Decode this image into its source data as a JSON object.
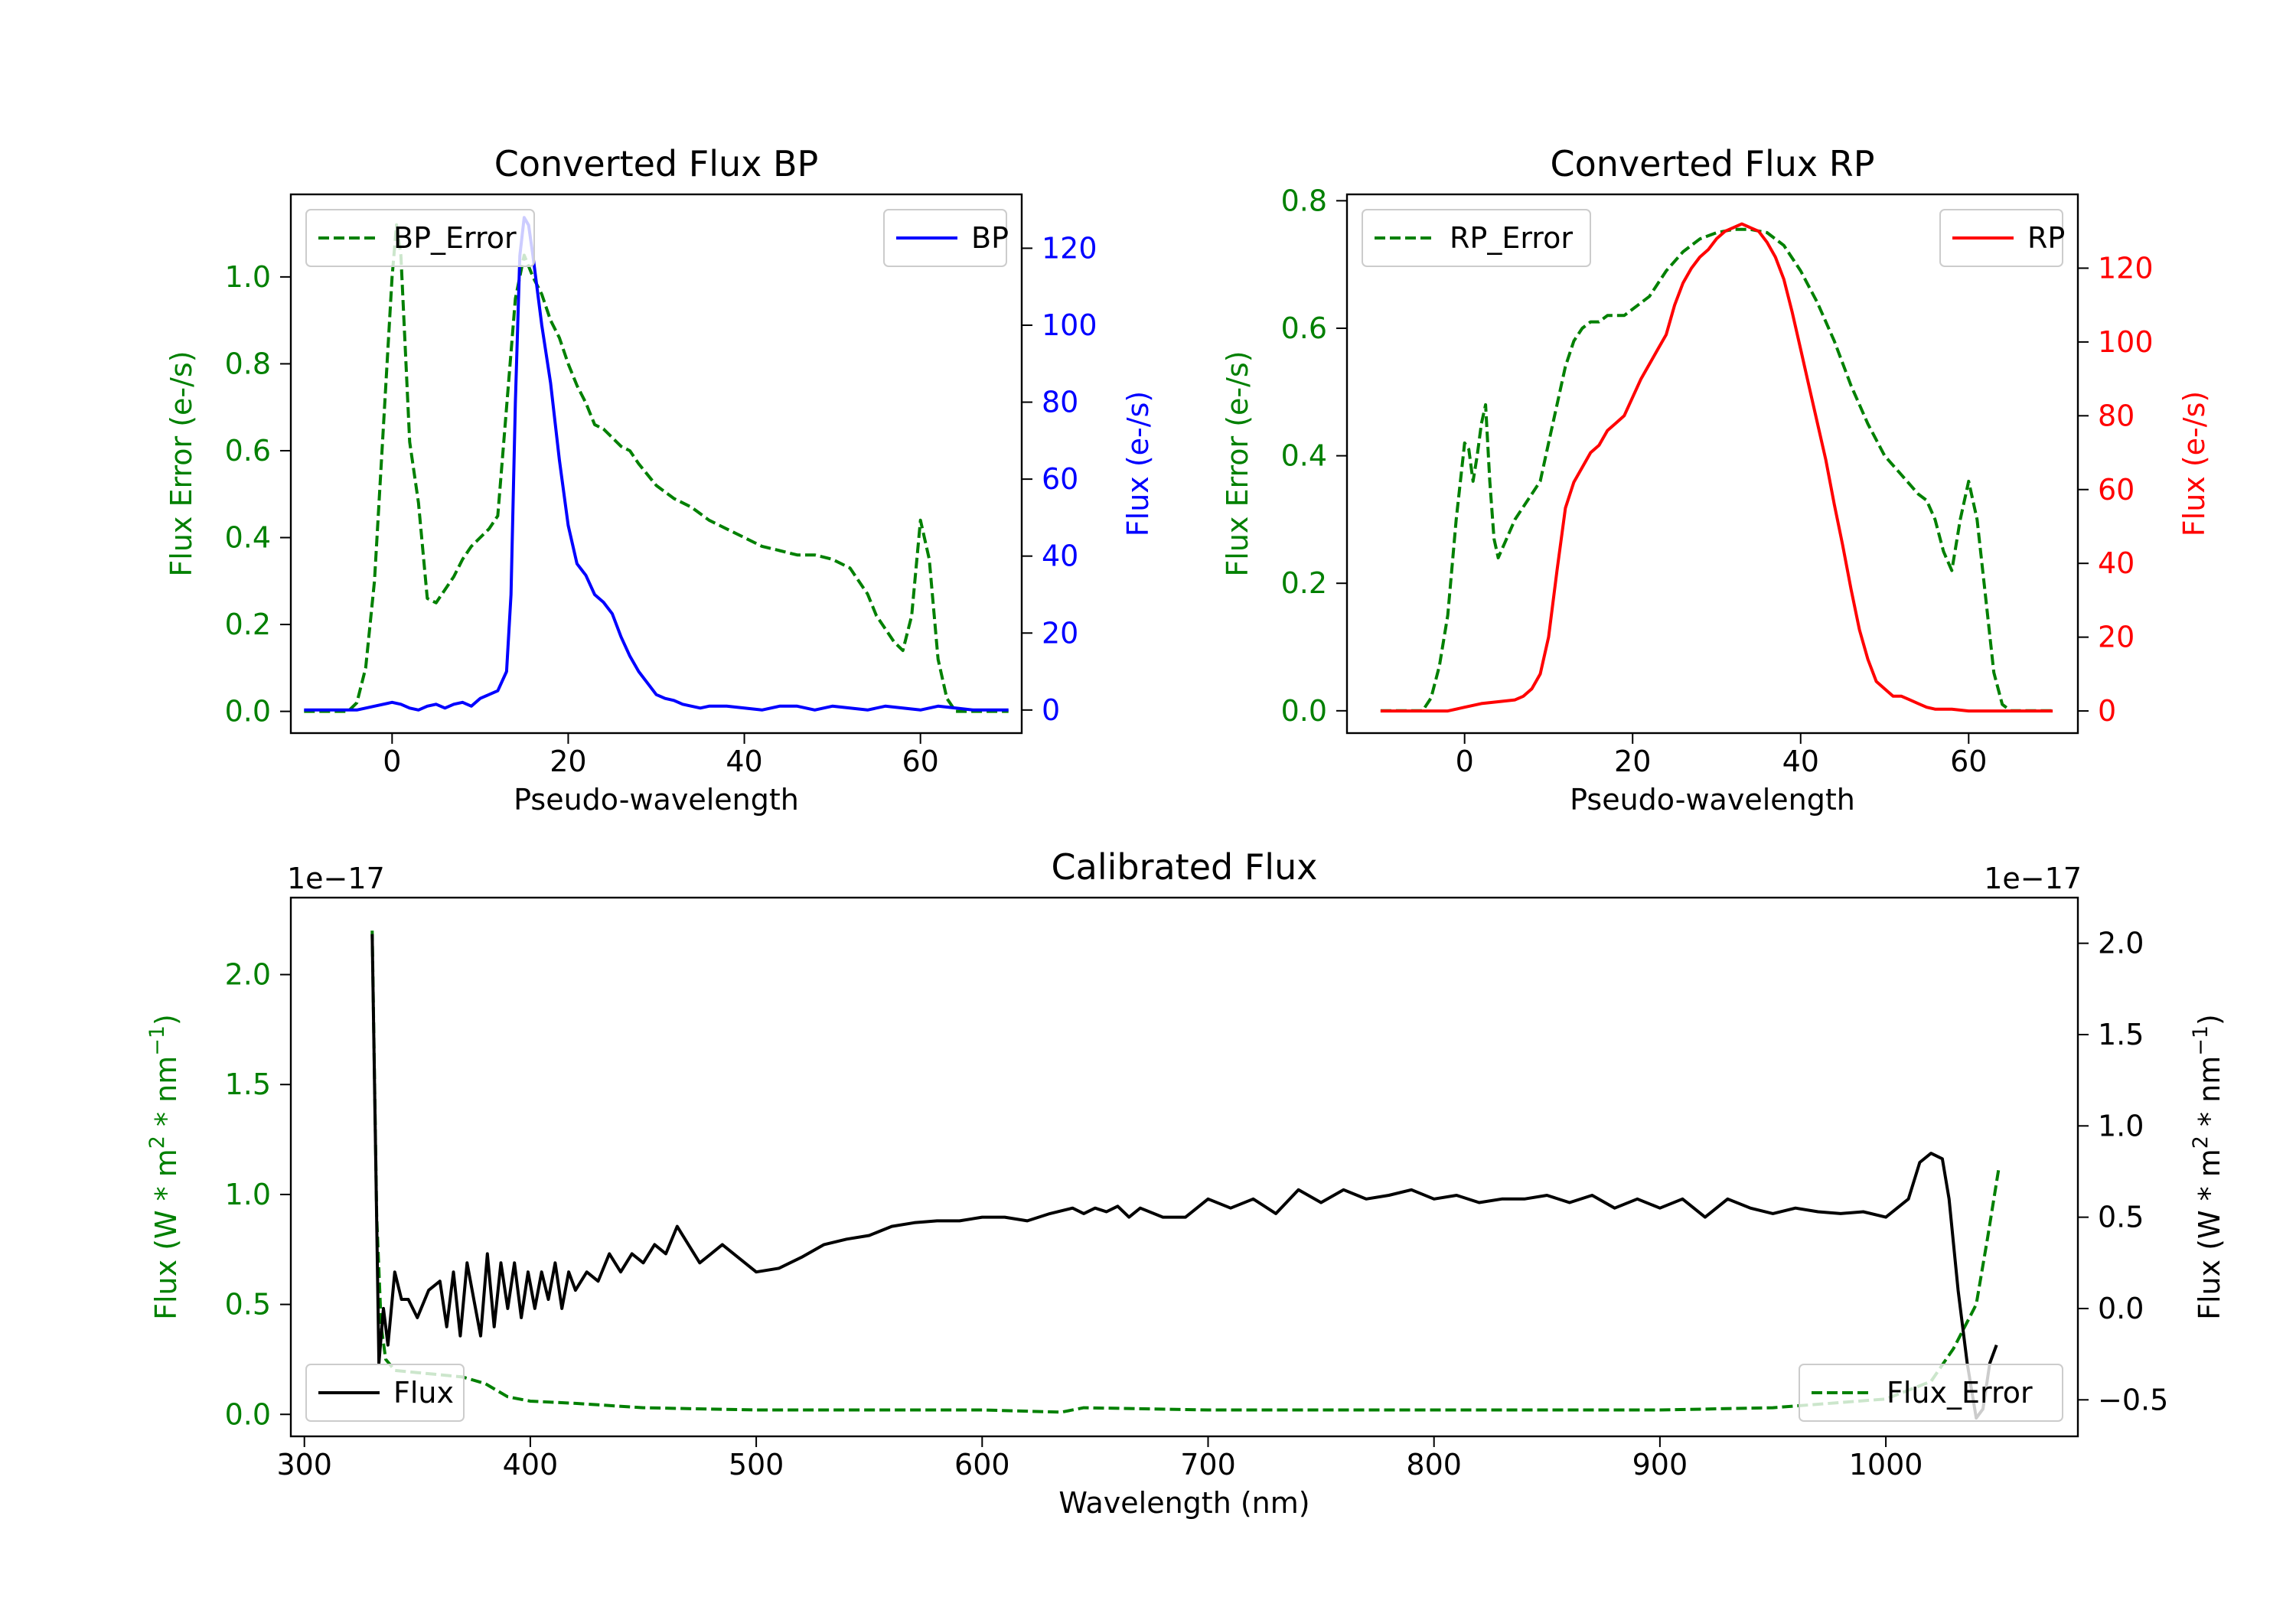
{
  "chart_data": [
    {
      "id": "bp",
      "type": "line",
      "title": "Converted Flux BP",
      "xlabel": "Pseudo-wavelength",
      "ylabel_left": "Flux Error (e-/s)",
      "ylabel_right": "Flux (e-/s)",
      "xlim": [
        -11.5,
        71.5
      ],
      "ylim_left": [
        -0.05,
        1.19
      ],
      "ylim_right": [
        -6,
        134
      ],
      "xticks": [
        0,
        20,
        40,
        60
      ],
      "xtick_labels": [
        "0",
        "20",
        "40",
        "60"
      ],
      "yticks_left": [
        0.0,
        0.2,
        0.4,
        0.6,
        0.8,
        1.0
      ],
      "ytick_labels_left": [
        "0.0",
        "0.2",
        "0.4",
        "0.6",
        "0.8",
        "1.0"
      ],
      "yticks_right": [
        0,
        20,
        40,
        60,
        80,
        100,
        120
      ],
      "ytick_labels_right": [
        "0",
        "20",
        "40",
        "60",
        "80",
        "100",
        "120"
      ],
      "left_axis_color": "#008000",
      "right_axis_color": "#0000ff",
      "series": [
        {
          "name": "BP_Error",
          "axis": "left",
          "color": "#008000",
          "style": "dashed",
          "x": [
            -10,
            -5,
            -4,
            -3,
            -2,
            -1,
            0,
            0.5,
            1,
            2,
            3,
            4,
            5,
            6,
            7,
            8,
            9,
            10,
            11,
            12,
            13,
            14,
            15,
            16,
            17,
            18,
            19,
            20,
            21,
            22,
            23,
            24,
            25,
            26,
            27,
            28,
            30,
            32,
            34,
            36,
            38,
            40,
            42,
            44,
            46,
            48,
            50,
            52,
            54,
            55,
            56,
            57,
            58,
            59,
            60,
            61,
            62,
            63,
            64,
            66,
            70
          ],
          "values": [
            0.0,
            0.0,
            0.02,
            0.1,
            0.3,
            0.65,
            1.0,
            1.12,
            1.05,
            0.62,
            0.48,
            0.26,
            0.25,
            0.28,
            0.31,
            0.35,
            0.38,
            0.4,
            0.42,
            0.45,
            0.7,
            0.95,
            1.05,
            1.0,
            0.96,
            0.9,
            0.86,
            0.8,
            0.75,
            0.71,
            0.66,
            0.65,
            0.63,
            0.61,
            0.6,
            0.57,
            0.52,
            0.49,
            0.47,
            0.44,
            0.42,
            0.4,
            0.38,
            0.37,
            0.36,
            0.36,
            0.35,
            0.33,
            0.27,
            0.22,
            0.19,
            0.16,
            0.14,
            0.22,
            0.44,
            0.35,
            0.12,
            0.03,
            0.0,
            0.0,
            0.0
          ]
        },
        {
          "name": "BP",
          "axis": "right",
          "color": "#0000ff",
          "style": "solid",
          "x": [
            -10,
            -6,
            -4,
            -2,
            0,
            1,
            2,
            3,
            4,
            5,
            6,
            7,
            8,
            9,
            10,
            11,
            12,
            13,
            13.5,
            14,
            14.5,
            15,
            15.5,
            16,
            17,
            18,
            19,
            20,
            21,
            22,
            23,
            24,
            25,
            26,
            27,
            28,
            29,
            30,
            31,
            32,
            33,
            34,
            35,
            36,
            38,
            40,
            42,
            44,
            46,
            48,
            50,
            52,
            54,
            56,
            58,
            60,
            62,
            64,
            66,
            70
          ],
          "values": [
            0,
            0,
            0,
            1,
            2,
            1.5,
            0.5,
            0,
            1,
            1.5,
            0.5,
            1.5,
            2,
            1,
            3,
            4,
            5,
            10,
            30,
            80,
            118,
            128,
            126,
            118,
            100,
            85,
            65,
            48,
            38,
            35,
            30,
            28,
            25,
            19,
            14,
            10,
            7,
            4,
            3,
            2.5,
            1.5,
            1,
            0.5,
            1,
            1,
            0.5,
            0,
            1,
            1,
            0,
            1,
            0.5,
            0,
            1,
            0.5,
            0,
            1,
            0.5,
            0,
            0
          ]
        }
      ],
      "legends": [
        {
          "position": "upper-left",
          "entries": [
            "BP_Error"
          ]
        },
        {
          "position": "upper-right",
          "entries": [
            "BP"
          ]
        }
      ]
    },
    {
      "id": "rp",
      "type": "line",
      "title": "Converted Flux RP",
      "xlabel": "Pseudo-wavelength",
      "ylabel_left": "Flux Error (e-/s)",
      "ylabel_right": "Flux (e-/s)",
      "xlim": [
        -14,
        73
      ],
      "ylim_left": [
        -0.035,
        0.81
      ],
      "ylim_right": [
        -6,
        140
      ],
      "xticks": [
        0,
        20,
        40,
        60
      ],
      "xtick_labels": [
        "0",
        "20",
        "40",
        "60"
      ],
      "yticks_left": [
        0.0,
        0.2,
        0.4,
        0.6,
        0.8
      ],
      "ytick_labels_left": [
        "0.0",
        "0.2",
        "0.4",
        "0.6",
        "0.8"
      ],
      "yticks_right": [
        0,
        20,
        40,
        60,
        80,
        100,
        120
      ],
      "ytick_labels_right": [
        "0",
        "20",
        "40",
        "60",
        "80",
        "100",
        "120"
      ],
      "left_axis_color": "#008000",
      "right_axis_color": "#ff0000",
      "series": [
        {
          "name": "RP_Error",
          "axis": "left",
          "color": "#008000",
          "style": "dashed",
          "x": [
            -10,
            -5,
            -4,
            -3,
            -2,
            -1,
            0,
            0.5,
            1,
            1.5,
            2,
            2.5,
            3,
            3.5,
            4,
            5,
            6,
            7,
            8,
            9,
            10,
            11,
            12,
            13,
            14,
            15,
            16,
            17,
            18,
            19,
            20,
            22,
            24,
            26,
            28,
            30,
            32,
            34,
            36,
            38,
            40,
            42,
            44,
            46,
            48,
            50,
            52,
            54,
            55,
            56,
            57,
            58,
            59,
            60,
            61,
            62,
            63,
            64,
            65,
            70
          ],
          "values": [
            0.0,
            0.0,
            0.02,
            0.07,
            0.15,
            0.3,
            0.42,
            0.41,
            0.36,
            0.4,
            0.45,
            0.48,
            0.36,
            0.27,
            0.24,
            0.27,
            0.3,
            0.32,
            0.34,
            0.36,
            0.42,
            0.48,
            0.54,
            0.58,
            0.6,
            0.61,
            0.61,
            0.62,
            0.62,
            0.62,
            0.63,
            0.65,
            0.69,
            0.72,
            0.74,
            0.75,
            0.755,
            0.755,
            0.75,
            0.73,
            0.69,
            0.64,
            0.58,
            0.51,
            0.45,
            0.4,
            0.37,
            0.34,
            0.33,
            0.3,
            0.25,
            0.22,
            0.3,
            0.36,
            0.3,
            0.18,
            0.06,
            0.01,
            0.0,
            0.0
          ]
        },
        {
          "name": "RP",
          "axis": "right",
          "color": "#ff0000",
          "style": "solid",
          "x": [
            -10,
            -2,
            0,
            2,
            4,
            6,
            7,
            8,
            9,
            10,
            11,
            12,
            13,
            14,
            15,
            16,
            17,
            18,
            19,
            20,
            21,
            22,
            23,
            24,
            25,
            26,
            27,
            28,
            29,
            30,
            31,
            32,
            33,
            34,
            35,
            36,
            37,
            38,
            39,
            40,
            41,
            42,
            43,
            44,
            45,
            46,
            47,
            48,
            49,
            50,
            51,
            52,
            53,
            54,
            55,
            56,
            58,
            60,
            62,
            70
          ],
          "values": [
            0,
            0,
            1,
            2,
            2.5,
            3,
            4,
            6,
            10,
            20,
            38,
            55,
            62,
            66,
            70,
            72,
            76,
            78,
            80,
            85,
            90,
            94,
            98,
            102,
            110,
            116,
            120,
            123,
            125,
            128,
            130,
            131,
            132,
            131,
            130,
            127,
            123,
            117,
            108,
            98,
            88,
            78,
            68,
            56,
            45,
            33,
            22,
            14,
            8,
            6,
            4,
            4,
            3,
            2,
            1,
            0.5,
            0.5,
            0,
            0,
            0
          ]
        }
      ],
      "legends": [
        {
          "position": "upper-left",
          "entries": [
            "RP_Error"
          ]
        },
        {
          "position": "upper-right",
          "entries": [
            "RP"
          ]
        }
      ]
    },
    {
      "id": "cal",
      "type": "line",
      "title": "Calibrated Flux",
      "xlabel": "Wavelength (nm)",
      "ylabel_left": "Flux (W * m^2 * nm^-1)",
      "ylabel_right": "Flux (W * m^2 * nm^-1)",
      "ylabel_main": "Flux (W * m",
      "ylabel_mid": " * nm",
      "ylabel_end": ")",
      "ylabel_sup1": "2",
      "ylabel_sup2": "−1",
      "offset_left": "1e−17",
      "offset_right": "1e−17",
      "xlim": [
        294,
        1085
      ],
      "ylim_left": [
        -0.1,
        2.35
      ],
      "ylim_right": [
        -0.7,
        2.25
      ],
      "xticks": [
        300,
        400,
        500,
        600,
        700,
        800,
        900,
        1000
      ],
      "xtick_labels": [
        "300",
        "400",
        "500",
        "600",
        "700",
        "800",
        "900",
        "1000"
      ],
      "yticks_left": [
        0.0,
        0.5,
        1.0,
        1.5,
        2.0
      ],
      "ytick_labels_left": [
        "0.0",
        "0.5",
        "1.0",
        "1.5",
        "2.0"
      ],
      "yticks_right": [
        -0.5,
        0.0,
        0.5,
        1.0,
        1.5,
        2.0
      ],
      "ytick_labels_right": [
        "−0.5",
        "0.0",
        "0.5",
        "1.0",
        "1.5",
        "2.0"
      ],
      "left_axis_color": "#008000",
      "right_axis_color": "#000000",
      "series": [
        {
          "name": "Flux_Error",
          "axis": "left",
          "color": "#008000",
          "style": "dashed",
          "x": [
            330,
            332,
            334,
            336,
            340,
            350,
            360,
            370,
            380,
            390,
            400,
            420,
            450,
            500,
            550,
            600,
            635,
            645,
            700,
            800,
            900,
            950,
            1000,
            1020,
            1030,
            1035,
            1040,
            1045,
            1050
          ],
          "values": [
            2.2,
            0.9,
            0.4,
            0.25,
            0.2,
            0.19,
            0.18,
            0.17,
            0.14,
            0.08,
            0.06,
            0.05,
            0.03,
            0.02,
            0.02,
            0.02,
            0.01,
            0.03,
            0.02,
            0.02,
            0.02,
            0.03,
            0.07,
            0.15,
            0.3,
            0.4,
            0.5,
            0.8,
            1.12
          ]
        },
        {
          "name": "Flux",
          "axis": "right",
          "color": "#000000",
          "style": "solid",
          "x": [
            330,
            333,
            335,
            337,
            340,
            343,
            346,
            350,
            355,
            360,
            363,
            366,
            369,
            372,
            375,
            378,
            381,
            384,
            387,
            390,
            393,
            396,
            399,
            402,
            405,
            408,
            411,
            414,
            417,
            420,
            425,
            430,
            435,
            440,
            445,
            450,
            455,
            460,
            465,
            470,
            475,
            480,
            485,
            490,
            500,
            510,
            520,
            530,
            540,
            550,
            560,
            570,
            580,
            590,
            600,
            610,
            620,
            630,
            640,
            645,
            650,
            655,
            660,
            665,
            670,
            680,
            690,
            700,
            710,
            720,
            730,
            740,
            750,
            760,
            770,
            780,
            790,
            800,
            810,
            820,
            830,
            840,
            850,
            860,
            870,
            880,
            890,
            900,
            910,
            920,
            930,
            940,
            950,
            960,
            970,
            980,
            990,
            1000,
            1010,
            1015,
            1020,
            1025,
            1028,
            1032,
            1036,
            1040,
            1043,
            1046,
            1049
          ],
          "values": [
            2.05,
            -0.3,
            0.0,
            -0.2,
            0.2,
            0.05,
            0.05,
            -0.05,
            0.1,
            0.15,
            -0.1,
            0.2,
            -0.15,
            0.25,
            0.05,
            -0.15,
            0.3,
            -0.1,
            0.25,
            0.0,
            0.25,
            -0.05,
            0.2,
            0.0,
            0.2,
            0.05,
            0.25,
            0.0,
            0.2,
            0.1,
            0.2,
            0.15,
            0.3,
            0.2,
            0.3,
            0.25,
            0.35,
            0.3,
            0.45,
            0.35,
            0.25,
            0.3,
            0.35,
            0.3,
            0.2,
            0.22,
            0.28,
            0.35,
            0.38,
            0.4,
            0.45,
            0.47,
            0.48,
            0.48,
            0.5,
            0.5,
            0.48,
            0.52,
            0.55,
            0.52,
            0.55,
            0.53,
            0.56,
            0.5,
            0.55,
            0.5,
            0.5,
            0.6,
            0.55,
            0.6,
            0.52,
            0.65,
            0.58,
            0.65,
            0.6,
            0.62,
            0.65,
            0.6,
            0.62,
            0.58,
            0.6,
            0.6,
            0.62,
            0.58,
            0.62,
            0.55,
            0.6,
            0.55,
            0.6,
            0.5,
            0.6,
            0.55,
            0.52,
            0.55,
            0.53,
            0.52,
            0.53,
            0.5,
            0.6,
            0.8,
            0.85,
            0.82,
            0.6,
            0.1,
            -0.3,
            -0.6,
            -0.55,
            -0.3,
            -0.2
          ]
        }
      ],
      "legends": [
        {
          "position": "lower-left",
          "entries": [
            "Flux"
          ]
        },
        {
          "position": "lower-right",
          "entries": [
            "Flux_Error"
          ]
        }
      ]
    }
  ]
}
